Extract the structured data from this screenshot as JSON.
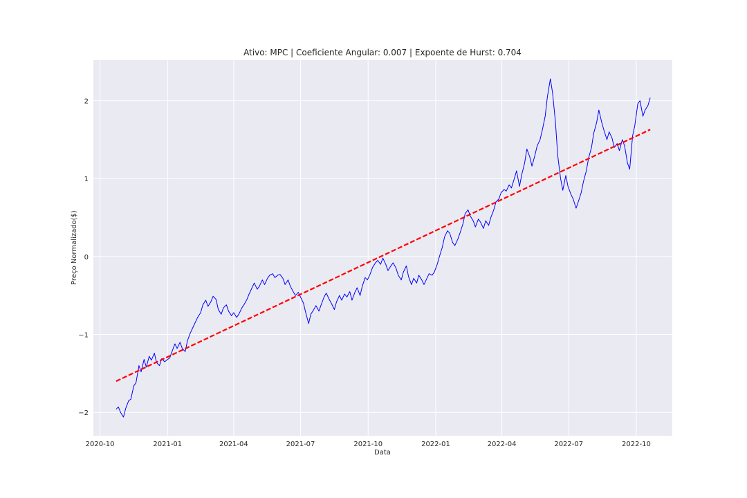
{
  "chart_data": {
    "type": "line",
    "title": "Ativo: MPC | Coeficiente Angular: 0.007 | Expoente de Hurst: 0.704",
    "xlabel": "Data",
    "ylabel": "Preço Normalizado($)",
    "x_ticks": [
      "2020-10",
      "2021-01",
      "2021-04",
      "2021-07",
      "2021-10",
      "2022-01",
      "2022-04",
      "2022-07",
      "2022-10"
    ],
    "y_ticks": [
      -2,
      -1,
      0,
      1,
      2
    ],
    "xlim": [
      "2020-09-22",
      "2022-11-19"
    ],
    "ylim": [
      -2.3,
      2.52
    ],
    "grid": true,
    "background": "#eaeaf2",
    "series": [
      {
        "style": "solid",
        "color": "#0000ff",
        "points": [
          [
            "2020-10-23",
            -1.96
          ],
          [
            "2020-10-26",
            -1.93
          ],
          [
            "2020-10-29",
            -2.0
          ],
          [
            "2020-11-02",
            -2.06
          ],
          [
            "2020-11-05",
            -1.95
          ],
          [
            "2020-11-09",
            -1.85
          ],
          [
            "2020-11-12",
            -1.83
          ],
          [
            "2020-11-16",
            -1.66
          ],
          [
            "2020-11-19",
            -1.62
          ],
          [
            "2020-11-23",
            -1.4
          ],
          [
            "2020-11-26",
            -1.48
          ],
          [
            "2020-11-30",
            -1.32
          ],
          [
            "2020-12-03",
            -1.42
          ],
          [
            "2020-12-07",
            -1.28
          ],
          [
            "2020-12-10",
            -1.33
          ],
          [
            "2020-12-14",
            -1.24
          ],
          [
            "2020-12-17",
            -1.36
          ],
          [
            "2020-12-21",
            -1.4
          ],
          [
            "2020-12-24",
            -1.31
          ],
          [
            "2020-12-28",
            -1.35
          ],
          [
            "2021-01-04",
            -1.3
          ],
          [
            "2021-01-07",
            -1.22
          ],
          [
            "2021-01-11",
            -1.12
          ],
          [
            "2021-01-14",
            -1.18
          ],
          [
            "2021-01-18",
            -1.1
          ],
          [
            "2021-01-21",
            -1.18
          ],
          [
            "2021-01-25",
            -1.22
          ],
          [
            "2021-01-28",
            -1.08
          ],
          [
            "2021-02-01",
            -0.98
          ],
          [
            "2021-02-04",
            -0.92
          ],
          [
            "2021-02-08",
            -0.84
          ],
          [
            "2021-02-11",
            -0.78
          ],
          [
            "2021-02-15",
            -0.72
          ],
          [
            "2021-02-18",
            -0.62
          ],
          [
            "2021-02-22",
            -0.56
          ],
          [
            "2021-02-25",
            -0.64
          ],
          [
            "2021-03-01",
            -0.58
          ],
          [
            "2021-03-04",
            -0.51
          ],
          [
            "2021-03-08",
            -0.55
          ],
          [
            "2021-03-11",
            -0.68
          ],
          [
            "2021-03-15",
            -0.74
          ],
          [
            "2021-03-18",
            -0.66
          ],
          [
            "2021-03-22",
            -0.62
          ],
          [
            "2021-03-25",
            -0.7
          ],
          [
            "2021-03-29",
            -0.76
          ],
          [
            "2021-04-01",
            -0.72
          ],
          [
            "2021-04-05",
            -0.78
          ],
          [
            "2021-04-08",
            -0.74
          ],
          [
            "2021-04-12",
            -0.66
          ],
          [
            "2021-04-15",
            -0.62
          ],
          [
            "2021-04-19",
            -0.55
          ],
          [
            "2021-04-22",
            -0.48
          ],
          [
            "2021-04-26",
            -0.4
          ],
          [
            "2021-04-29",
            -0.34
          ],
          [
            "2021-05-03",
            -0.42
          ],
          [
            "2021-05-06",
            -0.38
          ],
          [
            "2021-05-10",
            -0.3
          ],
          [
            "2021-05-13",
            -0.36
          ],
          [
            "2021-05-17",
            -0.28
          ],
          [
            "2021-05-20",
            -0.24
          ],
          [
            "2021-05-24",
            -0.22
          ],
          [
            "2021-05-27",
            -0.27
          ],
          [
            "2021-05-31",
            -0.24
          ],
          [
            "2021-06-03",
            -0.23
          ],
          [
            "2021-06-07",
            -0.28
          ],
          [
            "2021-06-10",
            -0.36
          ],
          [
            "2021-06-14",
            -0.3
          ],
          [
            "2021-06-17",
            -0.38
          ],
          [
            "2021-06-21",
            -0.45
          ],
          [
            "2021-06-24",
            -0.5
          ],
          [
            "2021-06-28",
            -0.46
          ],
          [
            "2021-07-01",
            -0.52
          ],
          [
            "2021-07-05",
            -0.6
          ],
          [
            "2021-07-08",
            -0.72
          ],
          [
            "2021-07-12",
            -0.86
          ],
          [
            "2021-07-15",
            -0.74
          ],
          [
            "2021-07-19",
            -0.68
          ],
          [
            "2021-07-22",
            -0.63
          ],
          [
            "2021-07-26",
            -0.7
          ],
          [
            "2021-07-29",
            -0.62
          ],
          [
            "2021-08-02",
            -0.52
          ],
          [
            "2021-08-05",
            -0.47
          ],
          [
            "2021-08-09",
            -0.55
          ],
          [
            "2021-08-12",
            -0.6
          ],
          [
            "2021-08-16",
            -0.68
          ],
          [
            "2021-08-19",
            -0.58
          ],
          [
            "2021-08-23",
            -0.5
          ],
          [
            "2021-08-26",
            -0.56
          ],
          [
            "2021-08-30",
            -0.48
          ],
          [
            "2021-09-02",
            -0.52
          ],
          [
            "2021-09-06",
            -0.45
          ],
          [
            "2021-09-09",
            -0.56
          ],
          [
            "2021-09-13",
            -0.46
          ],
          [
            "2021-09-16",
            -0.4
          ],
          [
            "2021-09-20",
            -0.5
          ],
          [
            "2021-09-23",
            -0.38
          ],
          [
            "2021-09-27",
            -0.27
          ],
          [
            "2021-09-30",
            -0.3
          ],
          [
            "2021-10-04",
            -0.22
          ],
          [
            "2021-10-07",
            -0.14
          ],
          [
            "2021-10-11",
            -0.08
          ],
          [
            "2021-10-14",
            -0.05
          ],
          [
            "2021-10-18",
            -0.1
          ],
          [
            "2021-10-21",
            -0.02
          ],
          [
            "2021-10-25",
            -0.1
          ],
          [
            "2021-10-28",
            -0.18
          ],
          [
            "2021-11-01",
            -0.12
          ],
          [
            "2021-11-04",
            -0.08
          ],
          [
            "2021-11-08",
            -0.15
          ],
          [
            "2021-11-11",
            -0.24
          ],
          [
            "2021-11-15",
            -0.3
          ],
          [
            "2021-11-18",
            -0.2
          ],
          [
            "2021-11-22",
            -0.12
          ],
          [
            "2021-11-25",
            -0.26
          ],
          [
            "2021-11-29",
            -0.36
          ],
          [
            "2021-12-02",
            -0.28
          ],
          [
            "2021-12-06",
            -0.34
          ],
          [
            "2021-12-09",
            -0.24
          ],
          [
            "2021-12-13",
            -0.3
          ],
          [
            "2021-12-16",
            -0.36
          ],
          [
            "2021-12-20",
            -0.28
          ],
          [
            "2021-12-23",
            -0.22
          ],
          [
            "2021-12-27",
            -0.24
          ],
          [
            "2021-12-30",
            -0.2
          ],
          [
            "2022-01-03",
            -0.1
          ],
          [
            "2022-01-06",
            0.0
          ],
          [
            "2022-01-10",
            0.12
          ],
          [
            "2022-01-13",
            0.25
          ],
          [
            "2022-01-17",
            0.33
          ],
          [
            "2022-01-20",
            0.3
          ],
          [
            "2022-01-24",
            0.18
          ],
          [
            "2022-01-27",
            0.14
          ],
          [
            "2022-01-31",
            0.22
          ],
          [
            "2022-02-03",
            0.3
          ],
          [
            "2022-02-07",
            0.42
          ],
          [
            "2022-02-10",
            0.55
          ],
          [
            "2022-02-14",
            0.6
          ],
          [
            "2022-02-17",
            0.52
          ],
          [
            "2022-02-21",
            0.46
          ],
          [
            "2022-02-24",
            0.38
          ],
          [
            "2022-02-28",
            0.48
          ],
          [
            "2022-03-03",
            0.44
          ],
          [
            "2022-03-07",
            0.36
          ],
          [
            "2022-03-10",
            0.46
          ],
          [
            "2022-03-14",
            0.4
          ],
          [
            "2022-03-17",
            0.5
          ],
          [
            "2022-03-21",
            0.6
          ],
          [
            "2022-03-24",
            0.7
          ],
          [
            "2022-03-28",
            0.74
          ],
          [
            "2022-03-31",
            0.82
          ],
          [
            "2022-04-04",
            0.86
          ],
          [
            "2022-04-07",
            0.84
          ],
          [
            "2022-04-11",
            0.92
          ],
          [
            "2022-04-14",
            0.88
          ],
          [
            "2022-04-18",
            1.0
          ],
          [
            "2022-04-21",
            1.1
          ],
          [
            "2022-04-25",
            0.9
          ],
          [
            "2022-04-28",
            1.05
          ],
          [
            "2022-05-02",
            1.2
          ],
          [
            "2022-05-05",
            1.38
          ],
          [
            "2022-05-09",
            1.28
          ],
          [
            "2022-05-12",
            1.16
          ],
          [
            "2022-05-16",
            1.3
          ],
          [
            "2022-05-19",
            1.42
          ],
          [
            "2022-05-23",
            1.5
          ],
          [
            "2022-05-26",
            1.62
          ],
          [
            "2022-05-30",
            1.8
          ],
          [
            "2022-06-02",
            2.05
          ],
          [
            "2022-06-06",
            2.28
          ],
          [
            "2022-06-09",
            2.1
          ],
          [
            "2022-06-13",
            1.72
          ],
          [
            "2022-06-16",
            1.3
          ],
          [
            "2022-06-20",
            1.0
          ],
          [
            "2022-06-23",
            0.85
          ],
          [
            "2022-06-27",
            1.04
          ],
          [
            "2022-06-30",
            0.9
          ],
          [
            "2022-07-04",
            0.8
          ],
          [
            "2022-07-07",
            0.74
          ],
          [
            "2022-07-11",
            0.62
          ],
          [
            "2022-07-14",
            0.7
          ],
          [
            "2022-07-18",
            0.82
          ],
          [
            "2022-07-21",
            0.96
          ],
          [
            "2022-07-25",
            1.1
          ],
          [
            "2022-07-28",
            1.26
          ],
          [
            "2022-08-01",
            1.4
          ],
          [
            "2022-08-04",
            1.58
          ],
          [
            "2022-08-08",
            1.72
          ],
          [
            "2022-08-11",
            1.88
          ],
          [
            "2022-08-15",
            1.72
          ],
          [
            "2022-08-18",
            1.62
          ],
          [
            "2022-08-22",
            1.5
          ],
          [
            "2022-08-25",
            1.6
          ],
          [
            "2022-08-29",
            1.52
          ],
          [
            "2022-09-01",
            1.4
          ],
          [
            "2022-09-05",
            1.45
          ],
          [
            "2022-09-08",
            1.36
          ],
          [
            "2022-09-12",
            1.5
          ],
          [
            "2022-09-15",
            1.42
          ],
          [
            "2022-09-19",
            1.2
          ],
          [
            "2022-09-22",
            1.12
          ],
          [
            "2022-09-26",
            1.55
          ],
          [
            "2022-09-29",
            1.68
          ],
          [
            "2022-10-03",
            1.96
          ],
          [
            "2022-10-06",
            2.0
          ],
          [
            "2022-10-10",
            1.8
          ],
          [
            "2022-10-13",
            1.88
          ],
          [
            "2022-10-17",
            1.94
          ],
          [
            "2022-10-20",
            2.04
          ]
        ]
      },
      {
        "style": "dashed",
        "color": "#ff0000",
        "points": [
          [
            "2020-10-23",
            -1.6
          ],
          [
            "2022-10-20",
            1.63
          ]
        ]
      }
    ]
  }
}
